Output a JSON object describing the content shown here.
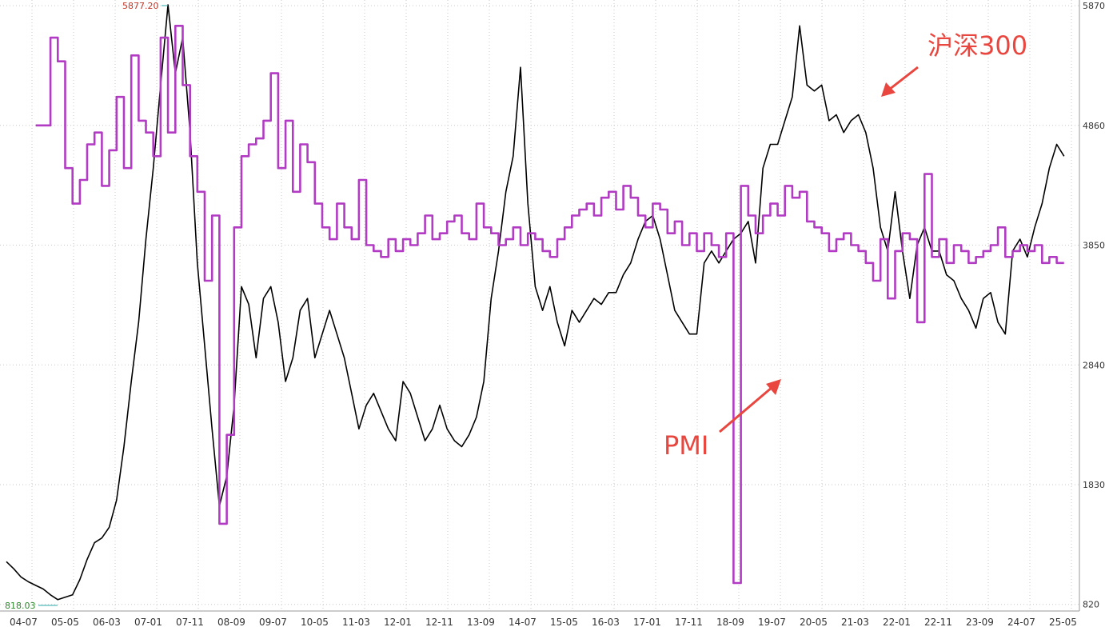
{
  "chart_data": {
    "type": "line",
    "title": "",
    "xlabel": "",
    "ylabel": "",
    "grid": true,
    "ylim": [
      818.03,
      5877.2
    ],
    "y_ticks": [
      "5870",
      "4860",
      "3850",
      "2840",
      "1830",
      "820"
    ],
    "y_tick_values": [
      5870,
      4860,
      3850,
      2840,
      1830,
      820
    ],
    "x_ticks": [
      "04-07",
      "05-05",
      "06-03",
      "07-01",
      "07-11",
      "08-09",
      "09-07",
      "10-05",
      "11-03",
      "12-01",
      "12-11",
      "13-09",
      "14-07",
      "15-05",
      "16-03",
      "17-01",
      "17-11",
      "18-09",
      "19-07",
      "20-05",
      "21-03",
      "22-01",
      "22-11",
      "23-09",
      "24-07",
      "25-05"
    ],
    "extremes": {
      "max_label": "5877.20",
      "min_label": "818.03",
      "max_color": "#c0392b",
      "min_color": "#2e8b2e"
    },
    "series": [
      {
        "name": "沪深300",
        "color": "#000000",
        "points": [
          [
            0,
            1180
          ],
          [
            1,
            1120
          ],
          [
            2,
            1050
          ],
          [
            3,
            1010
          ],
          [
            4,
            980
          ],
          [
            5,
            950
          ],
          [
            6,
            900
          ],
          [
            7,
            860
          ],
          [
            8,
            880
          ],
          [
            9,
            900
          ],
          [
            10,
            1030
          ],
          [
            11,
            1200
          ],
          [
            12,
            1340
          ],
          [
            13,
            1380
          ],
          [
            14,
            1470
          ],
          [
            15,
            1700
          ],
          [
            16,
            2150
          ],
          [
            17,
            2700
          ],
          [
            18,
            3200
          ],
          [
            19,
            3900
          ],
          [
            20,
            4500
          ],
          [
            21,
            5200
          ],
          [
            22,
            5877
          ],
          [
            23,
            5300
          ],
          [
            24,
            5600
          ],
          [
            25,
            4800
          ],
          [
            26,
            3700
          ],
          [
            27,
            3000
          ],
          [
            28,
            2300
          ],
          [
            29,
            1650
          ],
          [
            30,
            1900
          ],
          [
            31,
            2500
          ],
          [
            32,
            3500
          ],
          [
            33,
            3350
          ],
          [
            34,
            2900
          ],
          [
            35,
            3400
          ],
          [
            36,
            3500
          ],
          [
            37,
            3200
          ],
          [
            38,
            2700
          ],
          [
            39,
            2900
          ],
          [
            40,
            3300
          ],
          [
            41,
            3400
          ],
          [
            42,
            2900
          ],
          [
            43,
            3100
          ],
          [
            44,
            3300
          ],
          [
            45,
            3100
          ],
          [
            46,
            2900
          ],
          [
            47,
            2600
          ],
          [
            48,
            2300
          ],
          [
            49,
            2500
          ],
          [
            50,
            2600
          ],
          [
            51,
            2450
          ],
          [
            52,
            2300
          ],
          [
            53,
            2200
          ],
          [
            54,
            2700
          ],
          [
            55,
            2600
          ],
          [
            56,
            2400
          ],
          [
            57,
            2200
          ],
          [
            58,
            2300
          ],
          [
            59,
            2500
          ],
          [
            60,
            2300
          ],
          [
            61,
            2200
          ],
          [
            62,
            2150
          ],
          [
            63,
            2250
          ],
          [
            64,
            2400
          ],
          [
            65,
            2700
          ],
          [
            66,
            3400
          ],
          [
            67,
            3800
          ],
          [
            68,
            4300
          ],
          [
            69,
            4600
          ],
          [
            70,
            5350
          ],
          [
            71,
            4200
          ],
          [
            72,
            3500
          ],
          [
            73,
            3300
          ],
          [
            74,
            3500
          ],
          [
            75,
            3200
          ],
          [
            76,
            3000
          ],
          [
            77,
            3300
          ],
          [
            78,
            3200
          ],
          [
            79,
            3300
          ],
          [
            80,
            3400
          ],
          [
            81,
            3350
          ],
          [
            82,
            3450
          ],
          [
            83,
            3450
          ],
          [
            84,
            3600
          ],
          [
            85,
            3700
          ],
          [
            86,
            3900
          ],
          [
            87,
            4050
          ],
          [
            88,
            4100
          ],
          [
            89,
            3900
          ],
          [
            90,
            3600
          ],
          [
            91,
            3300
          ],
          [
            92,
            3200
          ],
          [
            93,
            3100
          ],
          [
            94,
            3100
          ],
          [
            95,
            3700
          ],
          [
            96,
            3800
          ],
          [
            97,
            3700
          ],
          [
            98,
            3800
          ],
          [
            99,
            3900
          ],
          [
            100,
            3950
          ],
          [
            101,
            4050
          ],
          [
            102,
            3700
          ],
          [
            103,
            4500
          ],
          [
            104,
            4700
          ],
          [
            105,
            4700
          ],
          [
            106,
            4900
          ],
          [
            107,
            5100
          ],
          [
            108,
            5700
          ],
          [
            109,
            5200
          ],
          [
            110,
            5150
          ],
          [
            111,
            5200
          ],
          [
            112,
            4900
          ],
          [
            113,
            4950
          ],
          [
            114,
            4800
          ],
          [
            115,
            4900
          ],
          [
            116,
            4950
          ],
          [
            117,
            4800
          ],
          [
            118,
            4500
          ],
          [
            119,
            4000
          ],
          [
            120,
            3800
          ],
          [
            121,
            4300
          ],
          [
            122,
            3800
          ],
          [
            123,
            3400
          ],
          [
            124,
            3850
          ],
          [
            125,
            4000
          ],
          [
            126,
            3800
          ],
          [
            127,
            3800
          ],
          [
            128,
            3600
          ],
          [
            129,
            3550
          ],
          [
            130,
            3400
          ],
          [
            131,
            3300
          ],
          [
            132,
            3150
          ],
          [
            133,
            3400
          ],
          [
            134,
            3450
          ],
          [
            135,
            3200
          ],
          [
            136,
            3100
          ],
          [
            137,
            3800
          ],
          [
            138,
            3900
          ],
          [
            139,
            3750
          ],
          [
            140,
            4000
          ],
          [
            141,
            4200
          ],
          [
            142,
            4500
          ],
          [
            143,
            4700
          ],
          [
            144,
            4600
          ]
        ]
      },
      {
        "name": "PMI",
        "color": "#b23bc4",
        "points": [
          [
            4,
            4860
          ],
          [
            6,
            5600
          ],
          [
            7,
            5400
          ],
          [
            8,
            4500
          ],
          [
            9,
            4200
          ],
          [
            10,
            4400
          ],
          [
            11,
            4700
          ],
          [
            12,
            4800
          ],
          [
            13,
            4350
          ],
          [
            14,
            4650
          ],
          [
            15,
            5100
          ],
          [
            16,
            4500
          ],
          [
            17,
            5450
          ],
          [
            18,
            4900
          ],
          [
            19,
            4800
          ],
          [
            20,
            4600
          ],
          [
            21,
            5600
          ],
          [
            22,
            4800
          ],
          [
            23,
            5700
          ],
          [
            24,
            5200
          ],
          [
            25,
            4600
          ],
          [
            26,
            4300
          ],
          [
            27,
            3550
          ],
          [
            28,
            4100
          ],
          [
            29,
            1500
          ],
          [
            30,
            2250
          ],
          [
            31,
            4000
          ],
          [
            32,
            4600
          ],
          [
            33,
            4700
          ],
          [
            34,
            4750
          ],
          [
            35,
            4900
          ],
          [
            36,
            5300
          ],
          [
            37,
            4500
          ],
          [
            38,
            4900
          ],
          [
            39,
            4300
          ],
          [
            40,
            4700
          ],
          [
            41,
            4550
          ],
          [
            42,
            4200
          ],
          [
            43,
            4000
          ],
          [
            44,
            3900
          ],
          [
            45,
            4200
          ],
          [
            46,
            4000
          ],
          [
            47,
            3900
          ],
          [
            48,
            4400
          ],
          [
            49,
            3850
          ],
          [
            50,
            3800
          ],
          [
            51,
            3750
          ],
          [
            52,
            3900
          ],
          [
            53,
            3800
          ],
          [
            54,
            3900
          ],
          [
            55,
            3850
          ],
          [
            56,
            3950
          ],
          [
            57,
            4100
          ],
          [
            58,
            3900
          ],
          [
            59,
            3950
          ],
          [
            60,
            4050
          ],
          [
            61,
            4100
          ],
          [
            62,
            3950
          ],
          [
            63,
            3900
          ],
          [
            64,
            4200
          ],
          [
            65,
            4000
          ],
          [
            66,
            3950
          ],
          [
            67,
            3850
          ],
          [
            68,
            3900
          ],
          [
            69,
            4000
          ],
          [
            70,
            3850
          ],
          [
            71,
            3950
          ],
          [
            72,
            3900
          ],
          [
            73,
            3800
          ],
          [
            74,
            3750
          ],
          [
            75,
            3900
          ],
          [
            76,
            4000
          ],
          [
            77,
            4100
          ],
          [
            78,
            4150
          ],
          [
            79,
            4200
          ],
          [
            80,
            4100
          ],
          [
            81,
            4250
          ],
          [
            82,
            4300
          ],
          [
            83,
            4150
          ],
          [
            84,
            4350
          ],
          [
            85,
            4250
          ],
          [
            86,
            4100
          ],
          [
            87,
            4000
          ],
          [
            88,
            4200
          ],
          [
            89,
            4150
          ],
          [
            90,
            3950
          ],
          [
            91,
            4050
          ],
          [
            92,
            3850
          ],
          [
            93,
            3950
          ],
          [
            94,
            3800
          ],
          [
            95,
            3950
          ],
          [
            96,
            3850
          ],
          [
            97,
            3750
          ],
          [
            98,
            3950
          ],
          [
            99,
            1000
          ],
          [
            100,
            4350
          ],
          [
            101,
            4100
          ],
          [
            102,
            3950
          ],
          [
            103,
            4100
          ],
          [
            104,
            4200
          ],
          [
            105,
            4100
          ],
          [
            106,
            4350
          ],
          [
            107,
            4250
          ],
          [
            108,
            4300
          ],
          [
            109,
            4050
          ],
          [
            110,
            4000
          ],
          [
            111,
            3950
          ],
          [
            112,
            3800
          ],
          [
            113,
            3900
          ],
          [
            114,
            3950
          ],
          [
            115,
            3850
          ],
          [
            116,
            3800
          ],
          [
            117,
            3700
          ],
          [
            118,
            3550
          ],
          [
            119,
            3900
          ],
          [
            120,
            3400
          ],
          [
            121,
            3800
          ],
          [
            122,
            3950
          ],
          [
            123,
            3900
          ],
          [
            124,
            3200
          ],
          [
            125,
            4450
          ],
          [
            126,
            3750
          ],
          [
            127,
            3900
          ],
          [
            128,
            3700
          ],
          [
            129,
            3850
          ],
          [
            130,
            3800
          ],
          [
            131,
            3700
          ],
          [
            132,
            3750
          ],
          [
            133,
            3800
          ],
          [
            134,
            3850
          ],
          [
            135,
            4000
          ],
          [
            136,
            3750
          ],
          [
            137,
            3800
          ],
          [
            138,
            3850
          ],
          [
            139,
            3800
          ],
          [
            140,
            3850
          ],
          [
            141,
            3700
          ],
          [
            142,
            3750
          ],
          [
            143,
            3700
          ],
          [
            144,
            3700
          ]
        ]
      }
    ],
    "annotations": [
      {
        "text": "沪深300",
        "color": "#e8463e"
      },
      {
        "text": "PMI",
        "color": "#e8463e"
      }
    ]
  }
}
